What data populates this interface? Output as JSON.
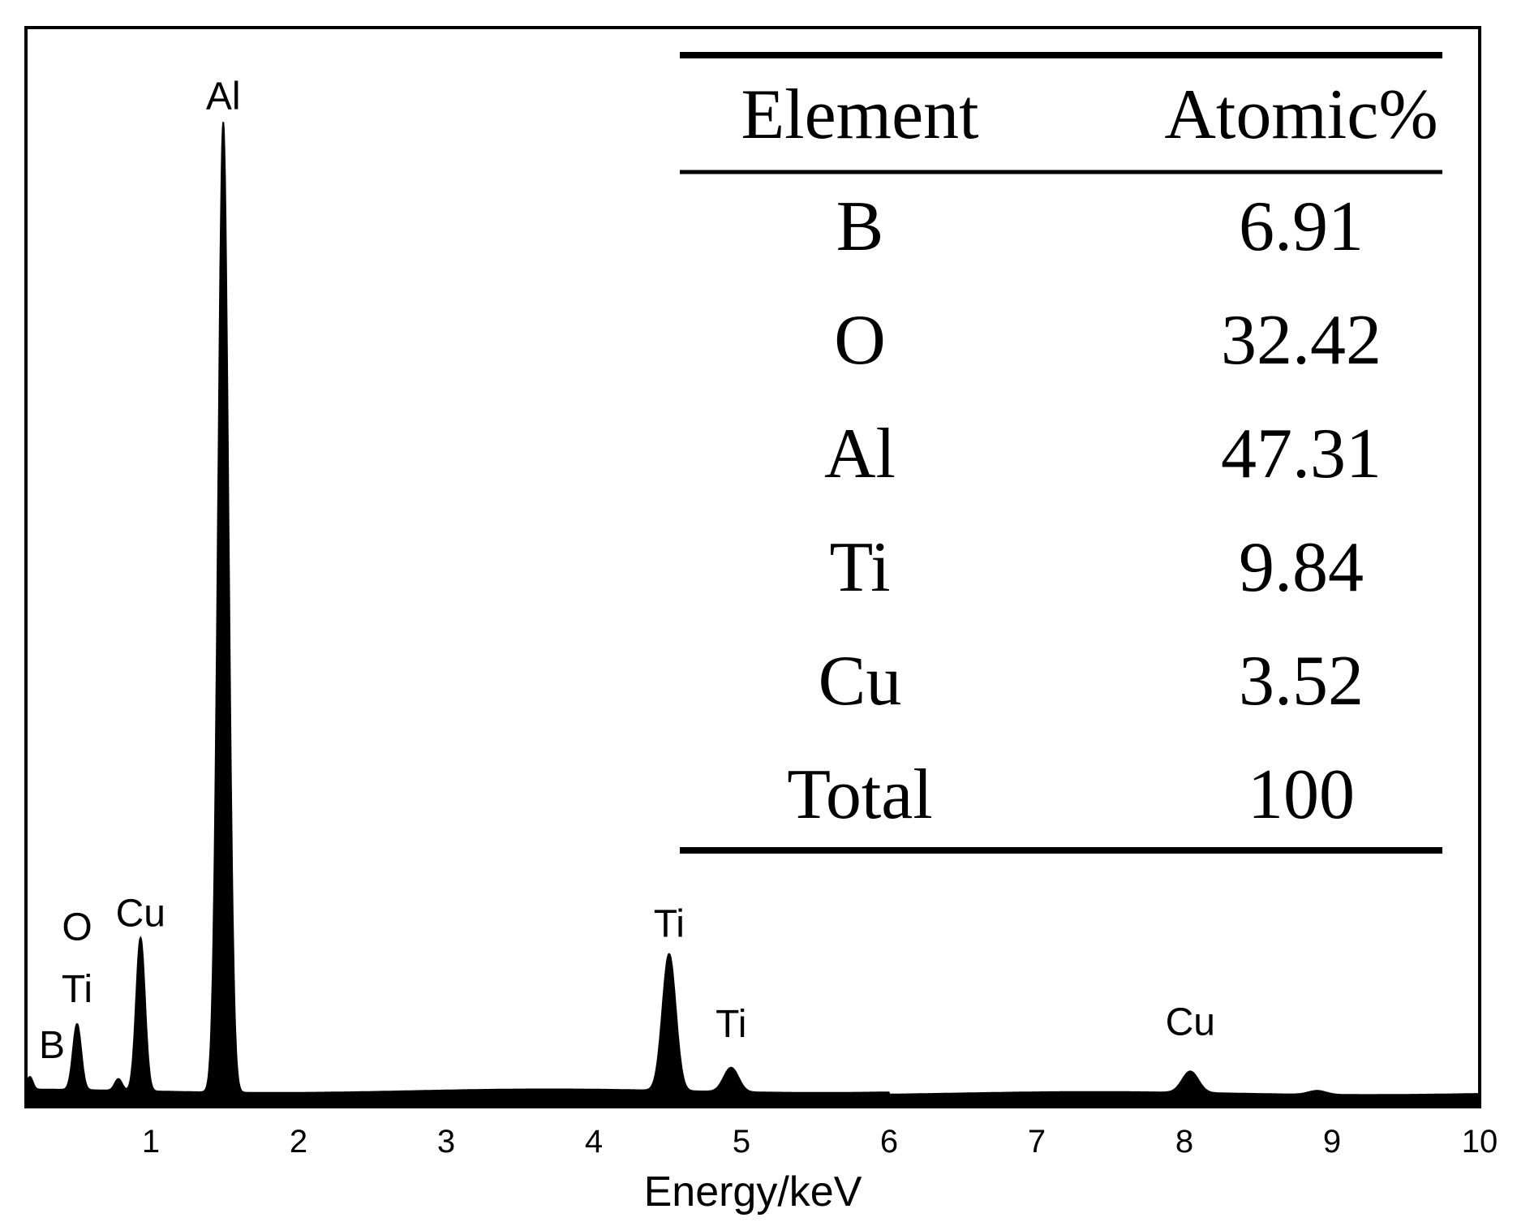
{
  "chart_data": {
    "type": "area",
    "xlabel": "Energy/keV",
    "ylabel": "",
    "xlim": [
      0.15,
      10
    ],
    "ylim": [
      0,
      100
    ],
    "xticks": [
      "1",
      "2",
      "3",
      "4",
      "5",
      "6",
      "7",
      "8",
      "9",
      "10"
    ],
    "grid": false,
    "baseline": 1.8,
    "series": [
      {
        "peaks": [
          {
            "x": 0.18,
            "height": 1.3,
            "width": 0.02
          },
          {
            "x": 0.5,
            "height": 6.8,
            "width": 0.028
          },
          {
            "x": 0.78,
            "height": 1.2,
            "width": 0.025
          },
          {
            "x": 0.93,
            "height": 15.8,
            "width": 0.03
          },
          {
            "x": 1.49,
            "height": 100.0,
            "width": 0.035
          },
          {
            "x": 4.51,
            "height": 14.1,
            "width": 0.045
          },
          {
            "x": 4.93,
            "height": 2.5,
            "width": 0.05
          },
          {
            "x": 8.04,
            "height": 2.2,
            "width": 0.055
          },
          {
            "x": 8.9,
            "height": 0.4,
            "width": 0.06
          }
        ]
      }
    ],
    "peak_labels": [
      {
        "text": "B",
        "x": 0.33,
        "y": 5.0
      },
      {
        "text": "Ti",
        "x": 0.5,
        "y": 10.8
      },
      {
        "text": "O",
        "x": 0.5,
        "y": 17.2
      },
      {
        "text": "Cu",
        "x": 0.93,
        "y": 18.6
      },
      {
        "text": "Al",
        "x": 1.49,
        "y": 102.8
      },
      {
        "text": "Ti",
        "x": 4.51,
        "y": 17.5
      },
      {
        "text": "Ti",
        "x": 4.93,
        "y": 7.2
      },
      {
        "text": "Cu",
        "x": 8.04,
        "y": 7.4
      }
    ],
    "table": {
      "headers": [
        "Element",
        "Atomic%"
      ],
      "rows": [
        [
          "B",
          "6.91"
        ],
        [
          "O",
          "32.42"
        ],
        [
          "Al",
          "47.31"
        ],
        [
          "Ti",
          "9.84"
        ],
        [
          "Cu",
          "3.52"
        ],
        [
          "Total",
          "100"
        ]
      ]
    }
  }
}
